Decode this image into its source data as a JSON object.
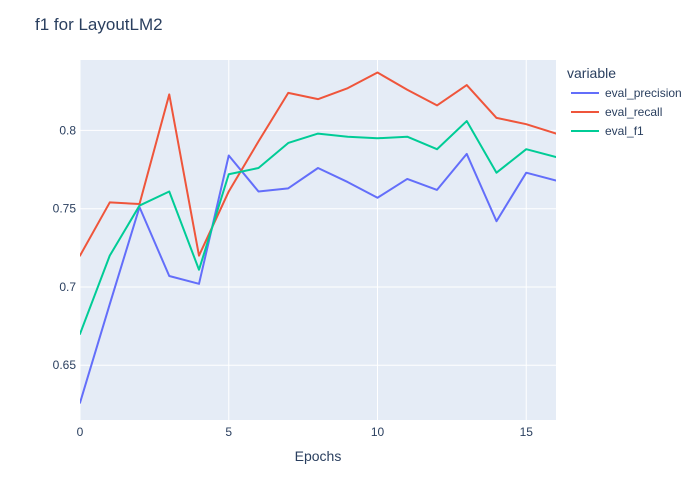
{
  "chart_data": {
    "type": "line",
    "title": "f1 for LayoutLM2",
    "xlabel": "Epochs",
    "ylabel": "",
    "xlim": [
      0,
      16
    ],
    "ylim": [
      0.615,
      0.845
    ],
    "x_ticks": [
      0,
      5,
      10,
      15
    ],
    "y_ticks": [
      0.65,
      0.7,
      0.75,
      0.8
    ],
    "y_tick_labels": [
      "0.65",
      "0.7",
      "0.75",
      "0.8"
    ],
    "grid": true,
    "legend_title": "variable",
    "legend_position": "right",
    "x": [
      0,
      1,
      2,
      3,
      4,
      5,
      6,
      7,
      8,
      9,
      10,
      11,
      12,
      13,
      14,
      15,
      16
    ],
    "series": [
      {
        "name": "eval_precision",
        "color": "#636efa",
        "values": [
          0.626,
          0.689,
          0.751,
          0.707,
          0.702,
          0.784,
          0.761,
          0.763,
          0.776,
          0.767,
          0.757,
          0.769,
          0.762,
          0.785,
          0.742,
          0.773,
          0.768
        ]
      },
      {
        "name": "eval_recall",
        "color": "#ef553b",
        "values": [
          0.72,
          0.754,
          0.753,
          0.823,
          0.72,
          0.761,
          0.793,
          0.824,
          0.82,
          0.827,
          0.837,
          0.826,
          0.816,
          0.829,
          0.808,
          0.804,
          0.798
        ]
      },
      {
        "name": "eval_f1",
        "color": "#00cc96",
        "values": [
          0.67,
          0.72,
          0.752,
          0.761,
          0.711,
          0.772,
          0.776,
          0.792,
          0.798,
          0.796,
          0.795,
          0.796,
          0.788,
          0.806,
          0.773,
          0.788,
          0.783
        ]
      }
    ]
  }
}
